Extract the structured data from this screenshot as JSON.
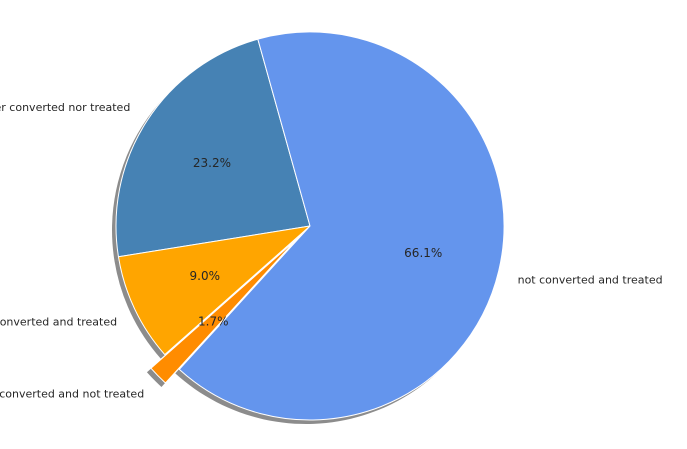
{
  "chart_data": {
    "type": "pie",
    "title": "",
    "labels": [
      "neither converted nor treated",
      "converted and treated",
      "converted and not treated",
      "not converted and treated"
    ],
    "values": [
      23.2,
      9.0,
      1.7,
      66.1
    ],
    "percent_labels": [
      "23.2%",
      "9.0%",
      "1.7%",
      "66.1%"
    ],
    "colors": [
      "#4682b4",
      "#ffa500",
      "#ff8c00",
      "#6495ed"
    ],
    "exploded": [
      false,
      false,
      true,
      false
    ],
    "shadow": true,
    "legend": "none"
  }
}
